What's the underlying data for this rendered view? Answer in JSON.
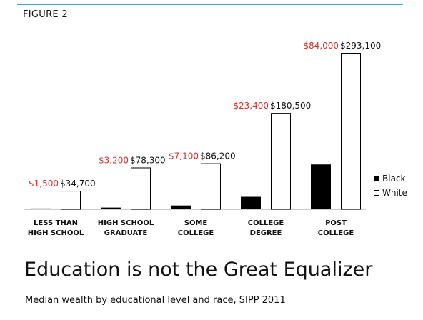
{
  "figure_label": "FIGURE 2",
  "title": "Education is not the Great Equalizer",
  "subtitle": "Median wealth by educational level and race, SIPP 2011",
  "colors": {
    "black_series": "#000000",
    "white_series": "#ffffff",
    "black_value_label": "#d8322a",
    "white_value_label": "#111111",
    "top_rule": "#35a8d8"
  },
  "legend": {
    "placement": "right",
    "items": [
      {
        "label": "Black",
        "swatch": "#000000"
      },
      {
        "label": "White",
        "swatch": "#ffffff"
      }
    ]
  },
  "chart_data": {
    "type": "bar",
    "title": "",
    "xlabel": "",
    "ylabel": "",
    "ylim": [
      0,
      293100
    ],
    "grid": false,
    "categories": [
      [
        "LESS THAN",
        "HIGH SCHOOL"
      ],
      [
        "HIGH SCHOOL",
        "GRADUATE"
      ],
      [
        "SOME",
        "COLLEGE"
      ],
      [
        "COLLEGE",
        "DEGREE"
      ],
      [
        "POST",
        "COLLEGE"
      ]
    ],
    "series": [
      {
        "name": "Black",
        "values": [
          1500,
          3200,
          7100,
          23400,
          84000
        ],
        "labels": [
          "$1,500",
          "$3,200",
          "$7,100",
          "$23,400",
          "$84,000"
        ]
      },
      {
        "name": "White",
        "values": [
          34700,
          78300,
          86200,
          180500,
          293100
        ],
        "labels": [
          "$34,700",
          "$78,300",
          "$86,200",
          "$180,500",
          "$293,100"
        ]
      }
    ]
  }
}
